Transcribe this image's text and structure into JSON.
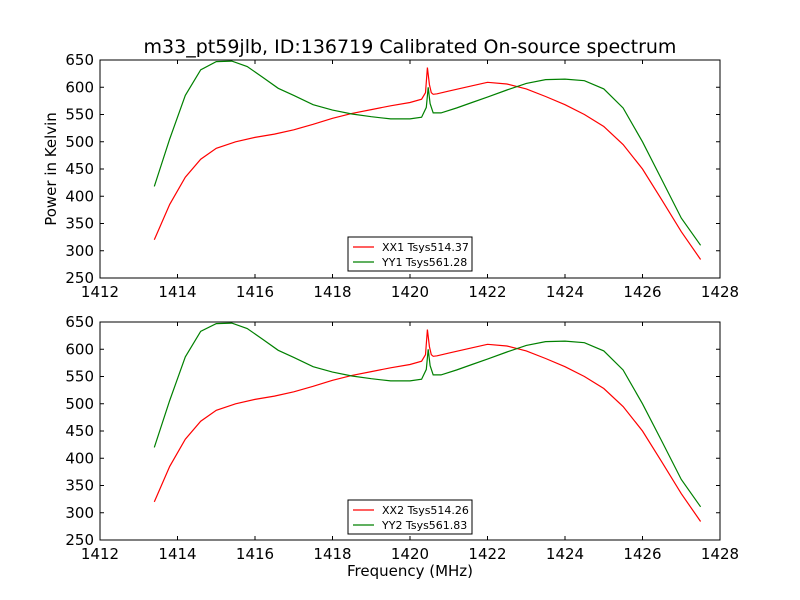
{
  "title": "m33_pt59jlb, ID:136719 Calibrated On-source spectrum",
  "colors": {
    "xx": "#ff0000",
    "yy": "#008000"
  },
  "chart_data": [
    {
      "type": "line",
      "xlabel": "",
      "ylabel": "Power in Kelvin",
      "xlim": [
        1412,
        1428
      ],
      "ylim": [
        250,
        650
      ],
      "xticks": [
        1412,
        1414,
        1416,
        1418,
        1420,
        1422,
        1424,
        1426,
        1428
      ],
      "yticks": [
        250,
        300,
        350,
        400,
        450,
        500,
        550,
        600,
        650
      ],
      "grid": false,
      "legend_position": "lower-center",
      "series": [
        {
          "name": "XX1 Tsys514.37",
          "color": "#ff0000",
          "x": [
            1413.4,
            1413.8,
            1414.2,
            1414.6,
            1415.0,
            1415.5,
            1416.0,
            1416.5,
            1417.0,
            1417.5,
            1418.0,
            1418.5,
            1419.0,
            1419.5,
            1420.0,
            1420.3,
            1420.4,
            1420.45,
            1420.5,
            1420.55,
            1420.6,
            1420.7,
            1421.0,
            1421.5,
            1422.0,
            1422.5,
            1423.0,
            1423.5,
            1424.0,
            1424.5,
            1425.0,
            1425.5,
            1426.0,
            1426.5,
            1427.0,
            1427.5
          ],
          "values": [
            320,
            385,
            435,
            468,
            488,
            500,
            508,
            514,
            522,
            532,
            543,
            552,
            559,
            566,
            572,
            578,
            590,
            636,
            605,
            590,
            587,
            588,
            593,
            601,
            609,
            606,
            597,
            583,
            568,
            550,
            528,
            495,
            450,
            393,
            335,
            284
          ]
        },
        {
          "name": "YY1 Tsys561.28",
          "color": "#008000",
          "x": [
            1413.4,
            1413.8,
            1414.2,
            1414.6,
            1415.0,
            1415.4,
            1415.8,
            1416.2,
            1416.6,
            1417.0,
            1417.5,
            1418.0,
            1418.5,
            1419.0,
            1419.5,
            1420.0,
            1420.3,
            1420.42,
            1420.47,
            1420.52,
            1420.6,
            1420.8,
            1421.2,
            1421.6,
            1422.0,
            1422.5,
            1423.0,
            1423.5,
            1424.0,
            1424.5,
            1425.0,
            1425.5,
            1426.0,
            1426.5,
            1427.0,
            1427.5
          ],
          "values": [
            418,
            505,
            585,
            632,
            647,
            648,
            638,
            618,
            598,
            585,
            568,
            558,
            551,
            546,
            542,
            542,
            545,
            563,
            600,
            570,
            553,
            553,
            562,
            572,
            582,
            595,
            607,
            614,
            615,
            612,
            597,
            562,
            500,
            430,
            360,
            310
          ]
        }
      ]
    },
    {
      "type": "line",
      "xlabel": "Frequency (MHz)",
      "ylabel": "",
      "xlim": [
        1412,
        1428
      ],
      "ylim": [
        250,
        650
      ],
      "xticks": [
        1412,
        1414,
        1416,
        1418,
        1420,
        1422,
        1424,
        1426,
        1428
      ],
      "yticks": [
        250,
        300,
        350,
        400,
        450,
        500,
        550,
        600,
        650
      ],
      "grid": false,
      "legend_position": "lower-center",
      "series": [
        {
          "name": "XX2 Tsys514.26",
          "color": "#ff0000",
          "x": [
            1413.4,
            1413.8,
            1414.2,
            1414.6,
            1415.0,
            1415.5,
            1416.0,
            1416.5,
            1417.0,
            1417.5,
            1418.0,
            1418.5,
            1419.0,
            1419.5,
            1420.0,
            1420.3,
            1420.4,
            1420.45,
            1420.5,
            1420.55,
            1420.6,
            1420.7,
            1421.0,
            1421.5,
            1422.0,
            1422.5,
            1423.0,
            1423.5,
            1424.0,
            1424.5,
            1425.0,
            1425.5,
            1426.0,
            1426.5,
            1427.0,
            1427.5
          ],
          "values": [
            320,
            385,
            435,
            468,
            488,
            500,
            508,
            514,
            522,
            532,
            543,
            552,
            559,
            566,
            572,
            578,
            590,
            636,
            605,
            590,
            587,
            588,
            593,
            601,
            609,
            606,
            597,
            583,
            568,
            550,
            528,
            495,
            450,
            393,
            335,
            284
          ]
        },
        {
          "name": "YY2 Tsys561.83",
          "color": "#008000",
          "x": [
            1413.4,
            1413.8,
            1414.2,
            1414.6,
            1415.0,
            1415.4,
            1415.8,
            1416.2,
            1416.6,
            1417.0,
            1417.5,
            1418.0,
            1418.5,
            1419.0,
            1419.5,
            1420.0,
            1420.3,
            1420.42,
            1420.47,
            1420.52,
            1420.6,
            1420.8,
            1421.2,
            1421.6,
            1422.0,
            1422.5,
            1423.0,
            1423.5,
            1424.0,
            1424.5,
            1425.0,
            1425.5,
            1426.0,
            1426.5,
            1427.0,
            1427.5
          ],
          "values": [
            420,
            506,
            586,
            633,
            647,
            648,
            638,
            618,
            598,
            585,
            568,
            558,
            551,
            546,
            542,
            542,
            545,
            563,
            600,
            570,
            553,
            553,
            562,
            572,
            582,
            595,
            607,
            614,
            615,
            612,
            597,
            562,
            500,
            431,
            361,
            311
          ]
        }
      ]
    }
  ]
}
